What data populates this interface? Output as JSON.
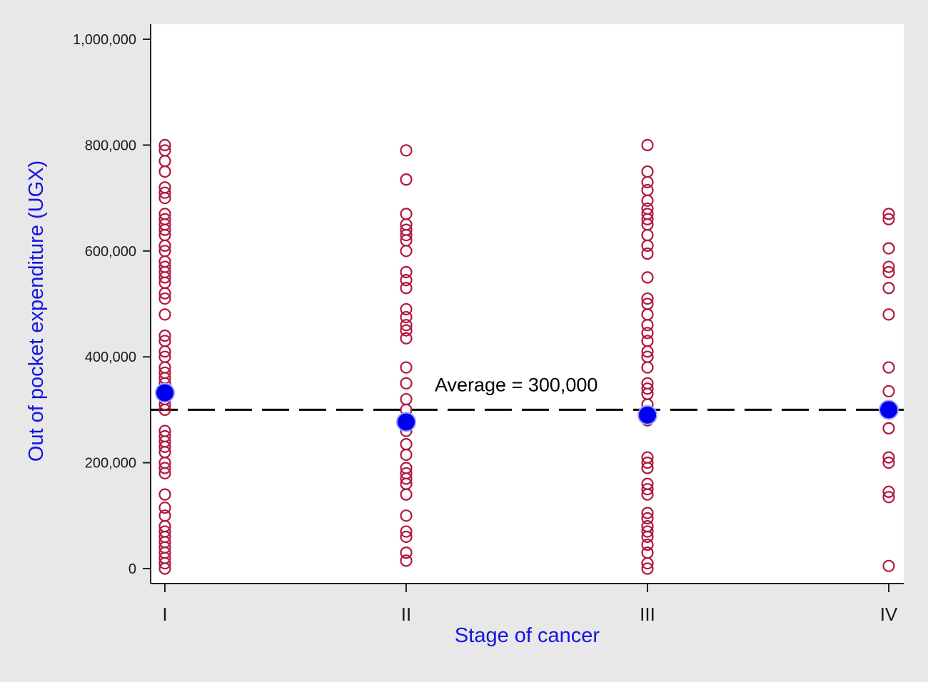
{
  "chart_data": {
    "type": "scatter",
    "title": "",
    "xlabel": "Stage of cancer",
    "ylabel": "Out of pocket expenditure (UGX)",
    "categories": [
      "I",
      "II",
      "III",
      "IV"
    ],
    "ylim": [
      0,
      1000000
    ],
    "yticks": [
      0,
      200000,
      400000,
      600000,
      800000,
      1000000
    ],
    "ytick_labels": [
      "0",
      "200,000",
      "400,000",
      "600,000",
      "800,000",
      "1,000,000"
    ],
    "grid": false,
    "legend": "none",
    "series": [
      {
        "marker": "hollow-circle",
        "color": "#b0183c",
        "points": [
          {
            "category": "I",
            "values": [
              800000,
              790000,
              770000,
              750000,
              720000,
              710000,
              700000,
              670000,
              660000,
              650000,
              640000,
              630000,
              610000,
              600000,
              580000,
              570000,
              560000,
              550000,
              540000,
              520000,
              510000,
              480000,
              440000,
              430000,
              410000,
              400000,
              380000,
              370000,
              360000,
              350000,
              330000,
              320000,
              310000,
              300000,
              260000,
              250000,
              240000,
              230000,
              220000,
              200000,
              190000,
              180000,
              140000,
              115000,
              100000,
              80000,
              70000,
              60000,
              50000,
              40000,
              30000,
              20000,
              10000,
              0
            ]
          },
          {
            "category": "II",
            "values": [
              790000,
              735000,
              670000,
              650000,
              640000,
              630000,
              620000,
              600000,
              560000,
              545000,
              530000,
              490000,
              475000,
              460000,
              450000,
              435000,
              380000,
              350000,
              320000,
              300000,
              280000,
              260000,
              235000,
              215000,
              190000,
              180000,
              170000,
              160000,
              140000,
              100000,
              70000,
              60000,
              30000,
              15000
            ]
          },
          {
            "category": "III",
            "values": [
              800000,
              750000,
              730000,
              715000,
              695000,
              680000,
              670000,
              660000,
              650000,
              630000,
              610000,
              595000,
              550000,
              510000,
              500000,
              480000,
              460000,
              445000,
              430000,
              410000,
              400000,
              380000,
              350000,
              340000,
              330000,
              310000,
              290000,
              280000,
              210000,
              200000,
              190000,
              160000,
              150000,
              140000,
              105000,
              95000,
              80000,
              70000,
              60000,
              45000,
              30000,
              10000,
              0
            ]
          },
          {
            "category": "IV",
            "values": [
              670000,
              660000,
              605000,
              570000,
              560000,
              530000,
              480000,
              380000,
              335000,
              265000,
              210000,
              200000,
              145000,
              135000,
              5000
            ]
          }
        ]
      },
      {
        "marker": "filled-circle",
        "color": "#0000ee",
        "points": [
          {
            "category": "I",
            "values": [
              332000
            ]
          },
          {
            "category": "II",
            "values": [
              277000
            ]
          },
          {
            "category": "III",
            "values": [
              290000
            ]
          },
          {
            "category": "IV",
            "values": [
              300000
            ]
          }
        ]
      }
    ],
    "reference_line": {
      "y": 300000,
      "style": "dashed",
      "color": "#000000"
    },
    "annotations": [
      {
        "text": "Average = 300,000",
        "x_category": "II",
        "y": 340000
      }
    ],
    "colors": {
      "background": "#e8e8e8",
      "plot_background": "#ffffff",
      "axis_title": "#1515e0",
      "points": "#b0183c",
      "means": "#0000ee"
    }
  }
}
